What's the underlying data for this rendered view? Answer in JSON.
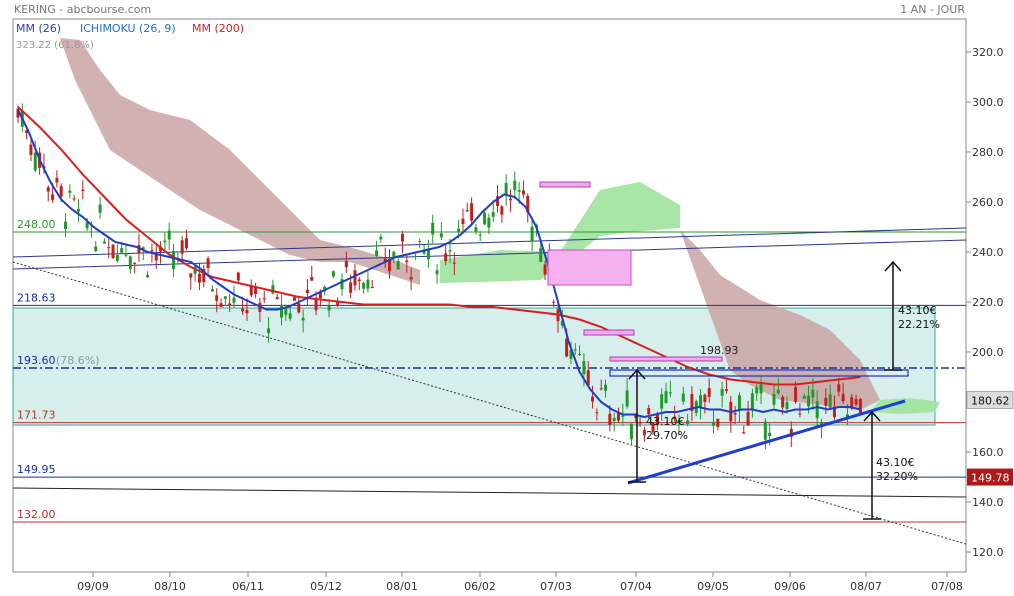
{
  "header": {
    "title": "KERING - abcbourse.com",
    "period": "1 AN - JOUR"
  },
  "legend": [
    {
      "label": "MM (26)",
      "color": "#1f3fc0"
    },
    {
      "label": "ICHIMOKU (26, 9)",
      "color": "#1f6fd0"
    },
    {
      "label": "MM (200)",
      "color": "#d62020"
    }
  ],
  "chart_data": {
    "type": "candlestick",
    "ylim": [
      112,
      328
    ],
    "y_ticks": [
      120.0,
      140.0,
      160.0,
      180.0,
      200.0,
      220.0,
      240.0,
      260.0,
      280.0,
      300.0,
      320.0
    ],
    "x_ticks": [
      "09/09",
      "08/10",
      "06/11",
      "05/12",
      "08/01",
      "06/02",
      "07/03",
      "07/04",
      "09/05",
      "09/06",
      "08/07",
      "07/08"
    ],
    "last_price": "180.62",
    "marked_price": "149.78",
    "levels": [
      {
        "value": 218.63,
        "label": "218.63",
        "color": "#1a2f9c"
      },
      {
        "value": 193.6,
        "label": "193.60",
        "note": "(78.6%)",
        "color": "#1a2f9c"
      },
      {
        "value": 171.73,
        "label": "171.73",
        "color": "#c0302a"
      },
      {
        "value": 149.95,
        "label": "149.95",
        "color": "#1a2f9c"
      },
      {
        "value": 132.0,
        "label": "132.00",
        "color": "#c0302a"
      },
      {
        "value": 248.0,
        "label": "248.00",
        "color": "#2a9a2a"
      },
      {
        "value": 323.22,
        "label": "323.22",
        "note": "(61.8%)",
        "color": "#999999"
      }
    ],
    "annotations": [
      {
        "text": "198.93"
      },
      {
        "text": "43.10€",
        "sub": "22.21%"
      },
      {
        "text": "43.10€",
        "sub": "29.70%"
      },
      {
        "text": "43.10€",
        "sub": "32.20%"
      }
    ],
    "ma200": [
      [
        0,
        298
      ],
      [
        20,
        290
      ],
      [
        40,
        281
      ],
      [
        60,
        271
      ],
      [
        80,
        262
      ],
      [
        100,
        253
      ],
      [
        120,
        246
      ],
      [
        140,
        239
      ],
      [
        160,
        234
      ],
      [
        180,
        230
      ],
      [
        200,
        228
      ],
      [
        220,
        226
      ],
      [
        240,
        224
      ],
      [
        260,
        222
      ],
      [
        280,
        221
      ],
      [
        300,
        220
      ],
      [
        320,
        219
      ],
      [
        340,
        219
      ],
      [
        360,
        219
      ],
      [
        380,
        219
      ],
      [
        400,
        219
      ],
      [
        420,
        218
      ],
      [
        440,
        218
      ],
      [
        460,
        217
      ],
      [
        480,
        216
      ],
      [
        500,
        215
      ],
      [
        520,
        213
      ],
      [
        540,
        210
      ],
      [
        560,
        206
      ],
      [
        580,
        202
      ],
      [
        600,
        198
      ],
      [
        620,
        194
      ],
      [
        640,
        191
      ],
      [
        660,
        189
      ],
      [
        680,
        188
      ],
      [
        700,
        187
      ],
      [
        720,
        187
      ],
      [
        740,
        188
      ],
      [
        760,
        189
      ],
      [
        780,
        190
      ]
    ],
    "ma26": [
      [
        0,
        297
      ],
      [
        10,
        288
      ],
      [
        20,
        277
      ],
      [
        30,
        268
      ],
      [
        40,
        261
      ],
      [
        50,
        257
      ],
      [
        60,
        254
      ],
      [
        70,
        250
      ],
      [
        80,
        247
      ],
      [
        90,
        244
      ],
      [
        100,
        243
      ],
      [
        110,
        242
      ],
      [
        120,
        240
      ],
      [
        130,
        239
      ],
      [
        140,
        238
      ],
      [
        150,
        237
      ],
      [
        160,
        236
      ],
      [
        170,
        233
      ],
      [
        180,
        229
      ],
      [
        190,
        226
      ],
      [
        200,
        223
      ],
      [
        210,
        221
      ],
      [
        220,
        219
      ],
      [
        230,
        217
      ],
      [
        240,
        217
      ],
      [
        250,
        218
      ],
      [
        260,
        220
      ],
      [
        270,
        222
      ],
      [
        280,
        224
      ],
      [
        290,
        226
      ],
      [
        300,
        228
      ],
      [
        310,
        230
      ],
      [
        320,
        232
      ],
      [
        330,
        234
      ],
      [
        340,
        236
      ],
      [
        350,
        238
      ],
      [
        360,
        239
      ],
      [
        370,
        240
      ],
      [
        380,
        241
      ],
      [
        390,
        242
      ],
      [
        400,
        244
      ],
      [
        410,
        247
      ],
      [
        420,
        251
      ],
      [
        430,
        256
      ],
      [
        440,
        260
      ],
      [
        450,
        263
      ],
      [
        460,
        262
      ],
      [
        470,
        258
      ],
      [
        480,
        250
      ],
      [
        490,
        236
      ],
      [
        500,
        220
      ],
      [
        510,
        204
      ],
      [
        520,
        192
      ],
      [
        530,
        185
      ],
      [
        540,
        180
      ],
      [
        550,
        177
      ],
      [
        560,
        175
      ],
      [
        570,
        175
      ],
      [
        580,
        174
      ],
      [
        590,
        175
      ],
      [
        600,
        176
      ],
      [
        610,
        176
      ],
      [
        620,
        177
      ],
      [
        630,
        178
      ],
      [
        640,
        177
      ],
      [
        650,
        177
      ],
      [
        660,
        176
      ],
      [
        670,
        177
      ],
      [
        680,
        177
      ],
      [
        690,
        176
      ],
      [
        700,
        177
      ],
      [
        710,
        176
      ],
      [
        720,
        177
      ],
      [
        730,
        177
      ],
      [
        740,
        178
      ],
      [
        750,
        177
      ],
      [
        760,
        178
      ],
      [
        770,
        178
      ],
      [
        780,
        177
      ]
    ]
  }
}
